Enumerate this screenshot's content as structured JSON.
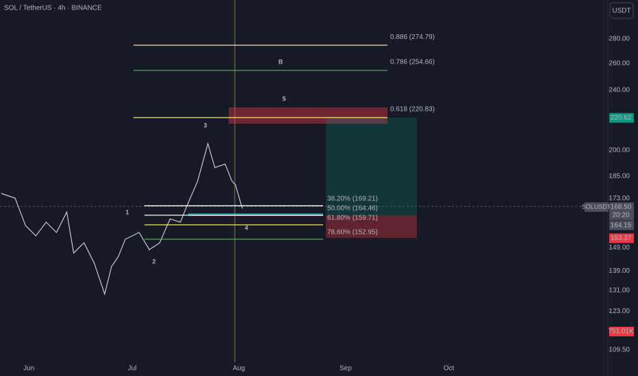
{
  "header": {
    "symbol": "SOL / TetherUS · 4h · BINANCE",
    "currency_button": "USDT"
  },
  "chart_data": {
    "type": "line",
    "log_scale": true,
    "color": "#c8cad0",
    "x": [
      144,
      148,
      151,
      154,
      157,
      160,
      163,
      165,
      168,
      171,
      174,
      176,
      178,
      180,
      182,
      184,
      187,
      190,
      193,
      196,
      198,
      201,
      204,
      206,
      209,
      211,
      212,
      214
    ],
    "values": [
      175.6,
      173.1,
      159.4,
      154.5,
      161.0,
      156.1,
      166.0,
      146.7,
      151.3,
      142.2,
      129.6,
      140.8,
      145.2,
      152.9,
      154.5,
      156.1,
      148.2,
      151.3,
      162.6,
      161.0,
      169.5,
      182.2,
      204.1,
      189.9,
      191.9,
      182.2,
      180.3,
      167.8
    ],
    "xlim": [
      143.6,
      320.6
    ],
    "xticks": [
      {
        "value": 152,
        "label": "Jun"
      },
      {
        "value": 182,
        "label": "Jul"
      },
      {
        "value": 213,
        "label": "Aug"
      },
      {
        "value": 244,
        "label": "Sep"
      },
      {
        "value": 274,
        "label": "Oct"
      }
    ],
    "ylim": [
      105,
      315
    ],
    "yticks": [
      {
        "value": 280,
        "label": "280.00"
      },
      {
        "value": 260,
        "label": "260.00"
      },
      {
        "value": 240,
        "label": "240.00"
      },
      {
        "value": 200,
        "label": "200.00"
      },
      {
        "value": 185,
        "label": "185.00"
      },
      {
        "value": 173,
        "label": "173.00"
      },
      {
        "value": 149,
        "label": "149.00"
      },
      {
        "value": 139,
        "label": "139.00"
      },
      {
        "value": 131,
        "label": "131.00"
      },
      {
        "value": 123,
        "label": "123.00"
      },
      {
        "value": 109.5,
        "label": "109.50"
      }
    ],
    "fib_upper": [
      {
        "value": 274.79,
        "label": "0.886 (274.79)",
        "color": "#f3e0b5"
      },
      {
        "value": 254.66,
        "label": "0.786 (254.66)",
        "color": "#4caf50"
      },
      {
        "value": 220.83,
        "label": "0.618 (220.83)",
        "color": "#fbe26a"
      }
    ],
    "fib_lower": [
      {
        "value": 169.21,
        "label": "38.20% (169.21)",
        "color": "#ffffff"
      },
      {
        "value": 164.46,
        "label": "50.00% (164.46)",
        "color": "#ffffff"
      },
      {
        "value": 159.71,
        "label": "61.80% (159.71)",
        "color": "#fbe26a"
      },
      {
        "value": 152.95,
        "label": "78.60% (152.95)",
        "color": "#4caf50"
      }
    ],
    "wave_labels": [
      "1",
      "2",
      "3",
      "4",
      "5",
      "B"
    ],
    "price_tags": [
      {
        "value": 220.62,
        "label": "220.62",
        "color": "#089981"
      },
      {
        "value": 168.5,
        "label": "168.50",
        "name": "SOLUSDT",
        "countdown": "20:20",
        "color": "#4a4e59"
      },
      {
        "value": 164.15,
        "label": "164.15",
        "color": "#4a4e59"
      },
      {
        "value": 153.37,
        "label": "153.37",
        "color": "#f23645"
      }
    ],
    "volume_tag": {
      "label": "751.01K",
      "color": "#f23645"
    }
  }
}
